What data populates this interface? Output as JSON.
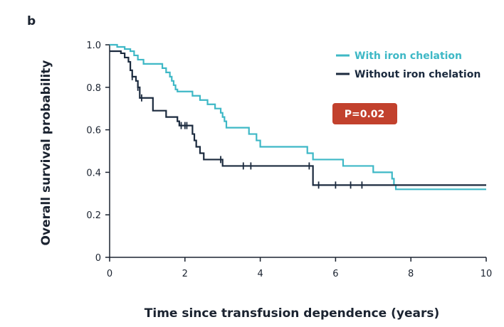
{
  "panel_label": "b",
  "pvalue_label": "P=0.02",
  "colors": {
    "with_chelation": "#3eb8c6",
    "without_chelation": "#1b2a3e",
    "pvalue_box": "#c2412d",
    "axis": "#1b2330"
  },
  "chart_data": {
    "type": "line",
    "subtype": "kaplan-meier step",
    "xlabel": "Time since transfusion dependence (years)",
    "ylabel": "Overall survival probability",
    "xlim": [
      0,
      10
    ],
    "ylim": [
      0,
      1
    ],
    "xticks": [
      0,
      2,
      4,
      6,
      8,
      10
    ],
    "yticks": [
      0,
      0.2,
      0.4,
      0.6,
      0.8,
      1.0
    ],
    "yticklabels": [
      "0",
      "0.2",
      "0.4",
      "0.6",
      "0.8",
      "1.0"
    ],
    "legend_position": "top-right",
    "grid": false,
    "series": [
      {
        "name": "With iron chelation",
        "color": "#3eb8c6",
        "steps": [
          [
            0,
            1.0
          ],
          [
            0.2,
            0.99
          ],
          [
            0.4,
            0.98
          ],
          [
            0.55,
            0.97
          ],
          [
            0.65,
            0.95
          ],
          [
            0.75,
            0.93
          ],
          [
            0.9,
            0.91
          ],
          [
            1.4,
            0.89
          ],
          [
            1.5,
            0.87
          ],
          [
            1.6,
            0.85
          ],
          [
            1.65,
            0.83
          ],
          [
            1.7,
            0.81
          ],
          [
            1.75,
            0.79
          ],
          [
            1.8,
            0.78
          ],
          [
            2.2,
            0.76
          ],
          [
            2.4,
            0.74
          ],
          [
            2.6,
            0.72
          ],
          [
            2.8,
            0.7
          ],
          [
            2.95,
            0.68
          ],
          [
            3.0,
            0.66
          ],
          [
            3.05,
            0.64
          ],
          [
            3.1,
            0.61
          ],
          [
            3.7,
            0.58
          ],
          [
            3.9,
            0.55
          ],
          [
            4.0,
            0.52
          ],
          [
            5.25,
            0.49
          ],
          [
            5.4,
            0.46
          ],
          [
            6.2,
            0.43
          ],
          [
            7.0,
            0.4
          ],
          [
            7.5,
            0.37
          ],
          [
            7.55,
            0.34
          ],
          [
            7.6,
            0.32
          ],
          [
            10.0,
            0.32
          ]
        ],
        "censor_x": []
      },
      {
        "name": "Without iron chelation",
        "color": "#1b2a3e",
        "steps": [
          [
            0,
            0.97
          ],
          [
            0.3,
            0.96
          ],
          [
            0.4,
            0.94
          ],
          [
            0.5,
            0.92
          ],
          [
            0.55,
            0.88
          ],
          [
            0.6,
            0.85
          ],
          [
            0.7,
            0.83
          ],
          [
            0.75,
            0.8
          ],
          [
            0.8,
            0.75
          ],
          [
            1.15,
            0.69
          ],
          [
            1.5,
            0.66
          ],
          [
            1.8,
            0.64
          ],
          [
            1.85,
            0.62
          ],
          [
            2.2,
            0.58
          ],
          [
            2.25,
            0.55
          ],
          [
            2.3,
            0.52
          ],
          [
            2.4,
            0.49
          ],
          [
            2.5,
            0.46
          ],
          [
            3.0,
            0.43
          ],
          [
            5.4,
            0.34
          ],
          [
            10.0,
            0.34
          ]
        ],
        "censor_x": [
          0.6,
          0.75,
          0.85,
          1.9,
          2.0,
          2.05,
          2.95,
          3.55,
          3.75,
          5.3,
          5.55,
          6.0,
          6.4,
          6.7
        ]
      }
    ]
  }
}
